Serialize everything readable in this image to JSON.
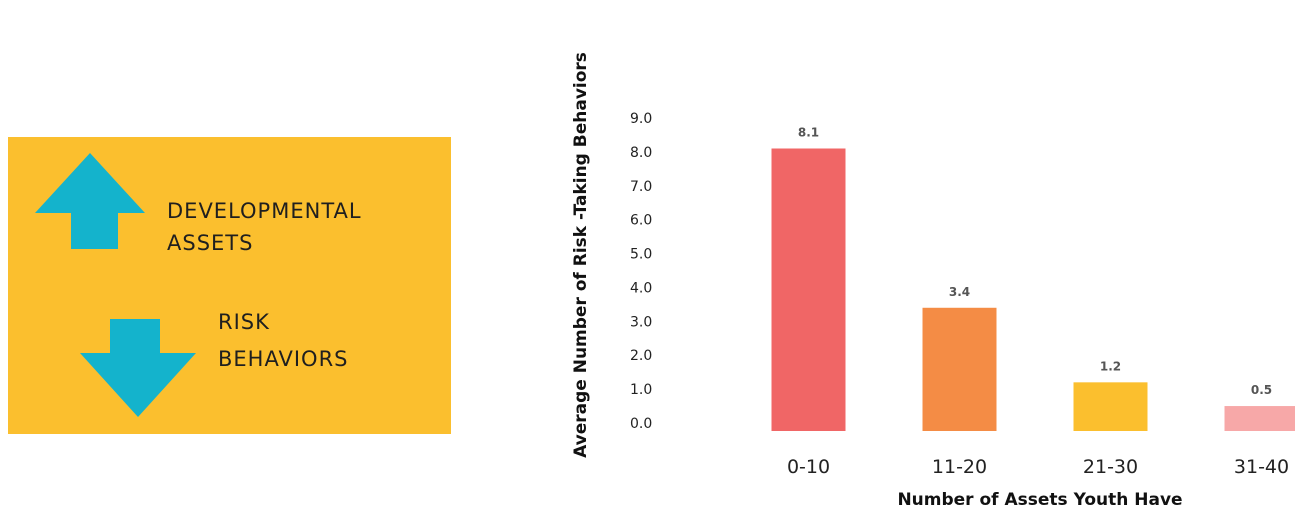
{
  "callout": {
    "up_label_line1": "DEVELOPMENTAL",
    "up_label_line2": "ASSETS",
    "down_label_line1": "RISK",
    "down_label_line2": "BEHAVIORS",
    "background_color": "#fbbf2e",
    "arrow_color": "#14b3cc",
    "up_icon": "arrow-up-icon",
    "down_icon": "arrow-down-icon"
  },
  "chart_data": {
    "type": "bar",
    "categories": [
      "0-10",
      "11-20",
      "21-30",
      "31-40"
    ],
    "values": [
      8.1,
      3.4,
      1.2,
      0.5
    ],
    "data_labels": [
      "8.1",
      "3.4",
      "1.2",
      "0.5"
    ],
    "colors": [
      "#f06666",
      "#f48c45",
      "#fbbf2e",
      "#f7a8a8"
    ],
    "xlabel": "Number of Assets Youth Have",
    "ylabel": "Average Number of Risk -Taking Behaviors",
    "ylim": [
      0,
      9
    ],
    "yticks": [
      "0.0",
      "1.0",
      "2.0",
      "3.0",
      "4.0",
      "5.0",
      "6.0",
      "7.0",
      "8.0",
      "9.0"
    ],
    "grid": false,
    "legend": "none"
  }
}
